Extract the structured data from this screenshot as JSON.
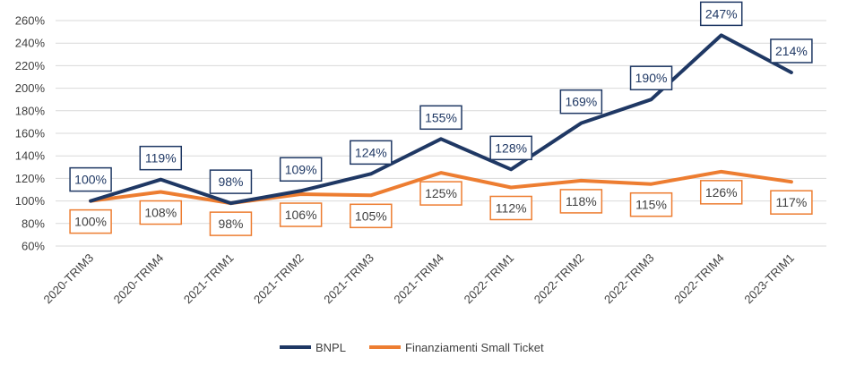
{
  "chart_data": {
    "type": "line",
    "categories": [
      "2020-TRIM3",
      "2020-TRIM4",
      "2021-TRIM1",
      "2021-TRIM2",
      "2021-TRIM3",
      "2021-TRIM4",
      "2022-TRIM1",
      "2022-TRIM2",
      "2022-TRIM3",
      "2022-TRIM4",
      "2023-TRIM1"
    ],
    "series": [
      {
        "name": "BNPL",
        "color": "#1f3864",
        "values": [
          100,
          119,
          98,
          109,
          124,
          155,
          128,
          169,
          190,
          247,
          214
        ],
        "labels": [
          "100%",
          "119%",
          "98%",
          "109%",
          "124%",
          "155%",
          "128%",
          "169%",
          "190%",
          "247%",
          "214%"
        ]
      },
      {
        "name": "Finanziamenti Small Ticket",
        "color": "#ed7d31",
        "values": [
          100,
          108,
          98,
          106,
          105,
          125,
          112,
          118,
          115,
          126,
          117
        ],
        "labels": [
          "100%",
          "108%",
          "98%",
          "106%",
          "105%",
          "125%",
          "112%",
          "118%",
          "115%",
          "126%",
          "117%"
        ]
      }
    ],
    "ylim": [
      60,
      260
    ],
    "yticks": [
      60,
      80,
      100,
      120,
      140,
      160,
      180,
      200,
      220,
      240,
      260
    ],
    "ytick_labels": [
      "60%",
      "80%",
      "100%",
      "120%",
      "140%",
      "160%",
      "180%",
      "200%",
      "220%",
      "240%",
      "260%"
    ],
    "grid": true,
    "legend_position": "bottom"
  }
}
